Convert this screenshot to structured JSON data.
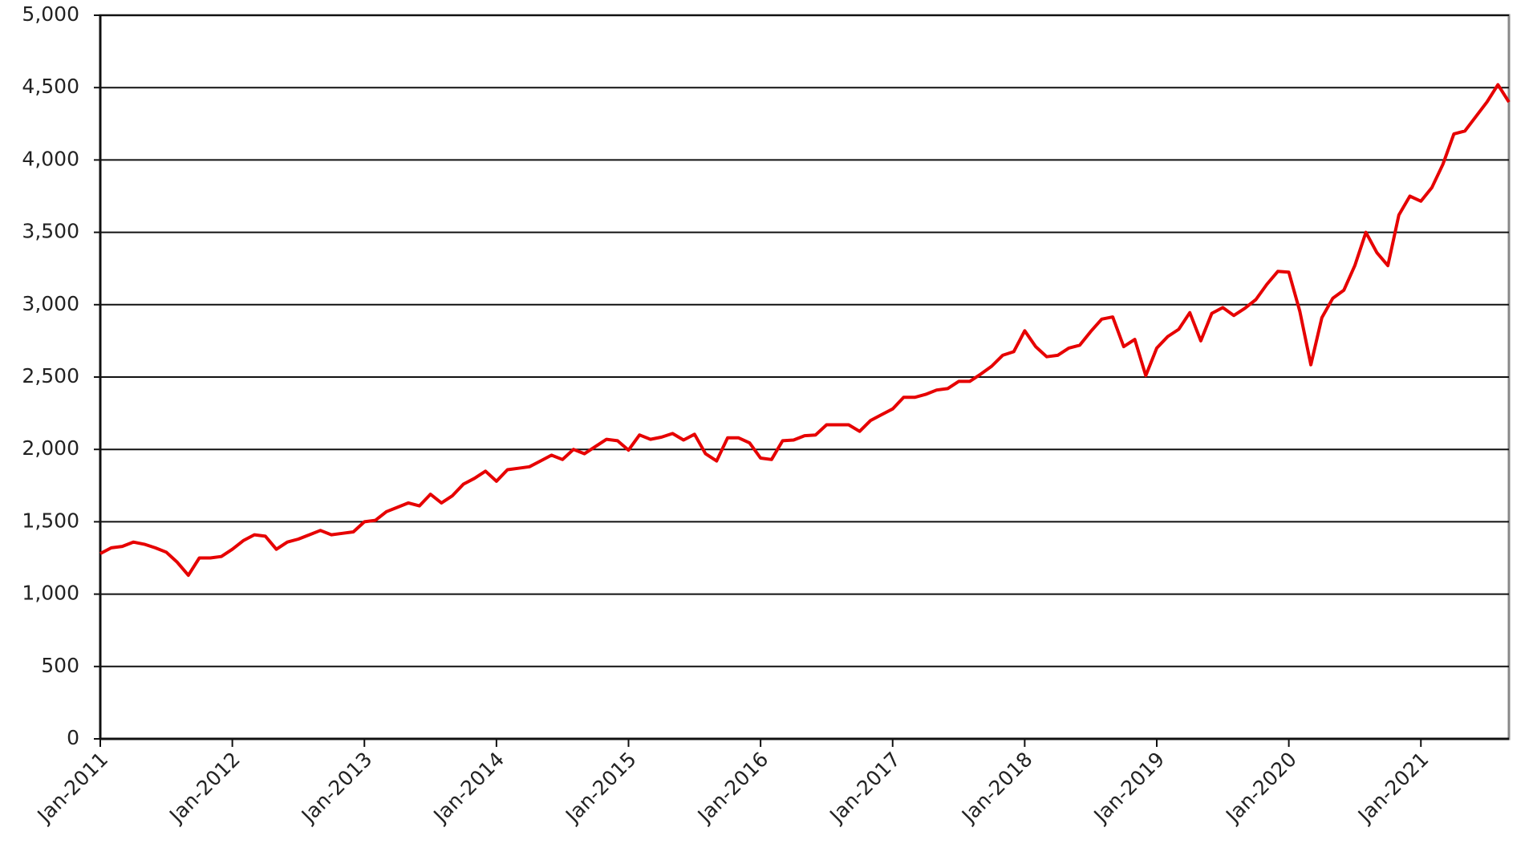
{
  "chart_data": {
    "type": "line",
    "x": [
      "2011-01",
      "2011-02",
      "2011-03",
      "2011-04",
      "2011-05",
      "2011-06",
      "2011-07",
      "2011-08",
      "2011-09",
      "2011-10",
      "2011-11",
      "2011-12",
      "2012-01",
      "2012-02",
      "2012-03",
      "2012-04",
      "2012-05",
      "2012-06",
      "2012-07",
      "2012-08",
      "2012-09",
      "2012-10",
      "2012-11",
      "2012-12",
      "2013-01",
      "2013-02",
      "2013-03",
      "2013-04",
      "2013-05",
      "2013-06",
      "2013-07",
      "2013-08",
      "2013-09",
      "2013-10",
      "2013-11",
      "2013-12",
      "2014-01",
      "2014-02",
      "2014-03",
      "2014-04",
      "2014-05",
      "2014-06",
      "2014-07",
      "2014-08",
      "2014-09",
      "2014-10",
      "2014-11",
      "2014-12",
      "2015-01",
      "2015-02",
      "2015-03",
      "2015-04",
      "2015-05",
      "2015-06",
      "2015-07",
      "2015-08",
      "2015-09",
      "2015-10",
      "2015-11",
      "2015-12",
      "2016-01",
      "2016-02",
      "2016-03",
      "2016-04",
      "2016-05",
      "2016-06",
      "2016-07",
      "2016-08",
      "2016-09",
      "2016-10",
      "2016-11",
      "2016-12",
      "2017-01",
      "2017-02",
      "2017-03",
      "2017-04",
      "2017-05",
      "2017-06",
      "2017-07",
      "2017-08",
      "2017-09",
      "2017-10",
      "2017-11",
      "2017-12",
      "2018-01",
      "2018-02",
      "2018-03",
      "2018-04",
      "2018-05",
      "2018-06",
      "2018-07",
      "2018-08",
      "2018-09",
      "2018-10",
      "2018-11",
      "2018-12",
      "2019-01",
      "2019-02",
      "2019-03",
      "2019-04",
      "2019-05",
      "2019-06",
      "2019-07",
      "2019-08",
      "2019-09",
      "2019-10",
      "2019-11",
      "2019-12",
      "2020-01",
      "2020-02",
      "2020-03",
      "2020-04",
      "2020-05",
      "2020-06",
      "2020-07",
      "2020-08",
      "2020-09",
      "2020-10",
      "2020-11",
      "2020-12",
      "2021-01",
      "2021-02",
      "2021-03",
      "2021-04",
      "2021-05",
      "2021-06",
      "2021-07",
      "2021-08",
      "2021-09"
    ],
    "series": [
      {
        "color": "#e60000",
        "values": [
          1280,
          1320,
          1330,
          1360,
          1345,
          1320,
          1290,
          1220,
          1130,
          1250,
          1250,
          1260,
          1310,
          1370,
          1410,
          1400,
          1310,
          1360,
          1380,
          1410,
          1440,
          1410,
          1420,
          1430,
          1500,
          1510,
          1570,
          1600,
          1630,
          1610,
          1690,
          1630,
          1680,
          1760,
          1800,
          1850,
          1780,
          1860,
          1870,
          1880,
          1920,
          1960,
          1930,
          2000,
          1970,
          2020,
          2070,
          2060,
          1995,
          2100,
          2070,
          2085,
          2110,
          2065,
          2105,
          1970,
          1920,
          2080,
          2080,
          2045,
          1940,
          1930,
          2060,
          2065,
          2095,
          2100,
          2170,
          2170,
          2170,
          2125,
          2200,
          2240,
          2280,
          2360,
          2360,
          2380,
          2410,
          2420,
          2470,
          2470,
          2520,
          2575,
          2650,
          2675,
          2820,
          2710,
          2640,
          2650,
          2700,
          2720,
          2815,
          2900,
          2915,
          2710,
          2760,
          2510,
          2700,
          2780,
          2830,
          2945,
          2750,
          2940,
          2980,
          2925,
          2975,
          3035,
          3140,
          3230,
          3225,
          2955,
          2585,
          2910,
          3045,
          3100,
          3270,
          3500,
          3360,
          3270,
          3620,
          3750,
          3715,
          3810,
          3970,
          4180,
          4200,
          4300,
          4400,
          4520,
          4400
        ]
      }
    ],
    "xlim": [
      "2011-01",
      "2021-09"
    ],
    "xticks": [
      {
        "value": "2011-01",
        "label": "Jan-2011"
      },
      {
        "value": "2012-01",
        "label": "Jan-2012"
      },
      {
        "value": "2013-01",
        "label": "Jan-2013"
      },
      {
        "value": "2014-01",
        "label": "Jan-2014"
      },
      {
        "value": "2015-01",
        "label": "Jan-2015"
      },
      {
        "value": "2016-01",
        "label": "Jan-2016"
      },
      {
        "value": "2017-01",
        "label": "Jan-2017"
      },
      {
        "value": "2018-01",
        "label": "Jan-2018"
      },
      {
        "value": "2019-01",
        "label": "Jan-2019"
      },
      {
        "value": "2020-01",
        "label": "Jan-2020"
      },
      {
        "value": "2021-01",
        "label": "Jan-2021"
      }
    ],
    "ylim": [
      0,
      5000
    ],
    "yticks": [
      0,
      {
        "value": 500,
        "label": "500"
      },
      {
        "value": 1000,
        "label": "1,000"
      },
      {
        "value": 1500,
        "label": "1,500"
      },
      {
        "value": 2000,
        "label": "2,000"
      },
      {
        "value": 2500,
        "label": "2,500"
      },
      {
        "value": 3000,
        "label": "3,000"
      },
      {
        "value": 3500,
        "label": "3,500"
      },
      {
        "value": 4000,
        "label": "4,000"
      },
      {
        "value": 4500,
        "label": "4,500"
      },
      {
        "value": 5000,
        "label": "5,000"
      }
    ],
    "grid": true
  }
}
